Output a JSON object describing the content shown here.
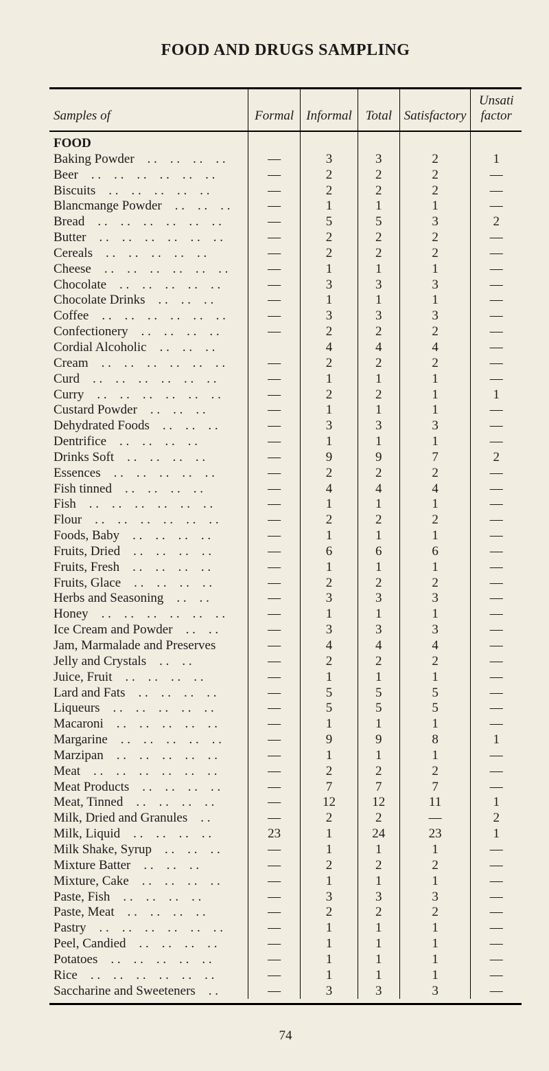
{
  "title": "FOOD AND DRUGS SAMPLING",
  "columns": {
    "samples": "Samples of",
    "formal": "Formal",
    "informal": "Informal",
    "total": "Total",
    "satisfactory": "Satisfactory",
    "unsat": "Unsati\nfactor"
  },
  "section_head": "FOOD",
  "dash": "—",
  "rows": [
    {
      "name": "Baking Powder",
      "f": "—",
      "i": "3",
      "t": "3",
      "s": "2",
      "u": "1"
    },
    {
      "name": "Beer",
      "f": "—",
      "i": "2",
      "t": "2",
      "s": "2",
      "u": "—"
    },
    {
      "name": "Biscuits",
      "f": "—",
      "i": "2",
      "t": "2",
      "s": "2",
      "u": "—"
    },
    {
      "name": "Blancmange Powder",
      "f": "—",
      "i": "1",
      "t": "1",
      "s": "1",
      "u": "—"
    },
    {
      "name": "Bread",
      "f": "—",
      "i": "5",
      "t": "5",
      "s": "3",
      "u": "2"
    },
    {
      "name": "Butter",
      "f": "—",
      "i": "2",
      "t": "2",
      "s": "2",
      "u": "—"
    },
    {
      "name": "Cereals",
      "f": "—",
      "i": "2",
      "t": "2",
      "s": "2",
      "u": "—"
    },
    {
      "name": "Cheese",
      "f": "—",
      "i": "1",
      "t": "1",
      "s": "1",
      "u": "—"
    },
    {
      "name": "Chocolate",
      "f": "—",
      "i": "3",
      "t": "3",
      "s": "3",
      "u": "—"
    },
    {
      "name": "Chocolate Drinks",
      "f": "—",
      "i": "1",
      "t": "1",
      "s": "1",
      "u": "—"
    },
    {
      "name": "Coffee",
      "f": "—",
      "i": "3",
      "t": "3",
      "s": "3",
      "u": "—"
    },
    {
      "name": "Confectionery",
      "f": "—",
      "i": "2",
      "t": "2",
      "s": "2",
      "u": "—"
    },
    {
      "name": "Cordial Alcoholic",
      "f": "",
      "i": "4",
      "t": "4",
      "s": "4",
      "u": "—"
    },
    {
      "name": "Cream",
      "f": "—",
      "i": "2",
      "t": "2",
      "s": "2",
      "u": "—"
    },
    {
      "name": "Curd",
      "f": "—",
      "i": "1",
      "t": "1",
      "s": "1",
      "u": "—"
    },
    {
      "name": "Curry",
      "f": "—",
      "i": "2",
      "t": "2",
      "s": "1",
      "u": "1"
    },
    {
      "name": "Custard Powder",
      "f": "—",
      "i": "1",
      "t": "1",
      "s": "1",
      "u": "—"
    },
    {
      "name": "Dehydrated Foods",
      "f": "—",
      "i": "3",
      "t": "3",
      "s": "3",
      "u": "—"
    },
    {
      "name": "Dentrifice",
      "f": "—",
      "i": "1",
      "t": "1",
      "s": "1",
      "u": "—"
    },
    {
      "name": "Drinks Soft",
      "f": "—",
      "i": "9",
      "t": "9",
      "s": "7",
      "u": "2"
    },
    {
      "name": "Essences",
      "f": "—",
      "i": "2",
      "t": "2",
      "s": "2",
      "u": "—"
    },
    {
      "name": "Fish tinned",
      "f": "—",
      "i": "4",
      "t": "4",
      "s": "4",
      "u": "—"
    },
    {
      "name": "Fish",
      "f": "—",
      "i": "1",
      "t": "1",
      "s": "1",
      "u": "—"
    },
    {
      "name": "Flour",
      "f": "—",
      "i": "2",
      "t": "2",
      "s": "2",
      "u": "—"
    },
    {
      "name": "Foods, Baby",
      "f": "—",
      "i": "1",
      "t": "1",
      "s": "1",
      "u": "—"
    },
    {
      "name": "Fruits, Dried",
      "f": "—",
      "i": "6",
      "t": "6",
      "s": "6",
      "u": "—"
    },
    {
      "name": "Fruits, Fresh",
      "f": "—",
      "i": "1",
      "t": "1",
      "s": "1",
      "u": "—"
    },
    {
      "name": "Fruits, Glace",
      "f": "—",
      "i": "2",
      "t": "2",
      "s": "2",
      "u": "—"
    },
    {
      "name": "Herbs and Seasoning",
      "f": "—",
      "i": "3",
      "t": "3",
      "s": "3",
      "u": "—"
    },
    {
      "name": "Honey",
      "f": "—",
      "i": "1",
      "t": "1",
      "s": "1",
      "u": "—"
    },
    {
      "name": "Ice Cream and Powder",
      "f": "—",
      "i": "3",
      "t": "3",
      "s": "3",
      "u": "—"
    },
    {
      "name": "Jam, Marmalade and Preserves",
      "f": "—",
      "i": "4",
      "t": "4",
      "s": "4",
      "u": "—"
    },
    {
      "name": "Jelly and Crystals",
      "f": "—",
      "i": "2",
      "t": "2",
      "s": "2",
      "u": "—"
    },
    {
      "name": "Juice, Fruit",
      "f": "—",
      "i": "1",
      "t": "1",
      "s": "1",
      "u": "—"
    },
    {
      "name": "Lard and Fats",
      "f": "—",
      "i": "5",
      "t": "5",
      "s": "5",
      "u": "—"
    },
    {
      "name": "Liqueurs",
      "f": "—",
      "i": "5",
      "t": "5",
      "s": "5",
      "u": "—"
    },
    {
      "name": "Macaroni",
      "f": "—",
      "i": "1",
      "t": "1",
      "s": "1",
      "u": "—"
    },
    {
      "name": "Margarine",
      "f": "—",
      "i": "9",
      "t": "9",
      "s": "8",
      "u": "1"
    },
    {
      "name": "Marzipan",
      "f": "—",
      "i": "1",
      "t": "1",
      "s": "1",
      "u": "—"
    },
    {
      "name": "Meat",
      "f": "—",
      "i": "2",
      "t": "2",
      "s": "2",
      "u": "—"
    },
    {
      "name": "Meat Products",
      "f": "—",
      "i": "7",
      "t": "7",
      "s": "7",
      "u": "—"
    },
    {
      "name": "Meat, Tinned",
      "f": "—",
      "i": "12",
      "t": "12",
      "s": "11",
      "u": "1"
    },
    {
      "name": "Milk, Dried and Granules",
      "f": "—",
      "i": "2",
      "t": "2",
      "s": "—",
      "u": "2"
    },
    {
      "name": "Milk, Liquid",
      "f": "23",
      "i": "1",
      "t": "24",
      "s": "23",
      "u": "1"
    },
    {
      "name": "Milk Shake, Syrup",
      "f": "—",
      "i": "1",
      "t": "1",
      "s": "1",
      "u": "—"
    },
    {
      "name": "Mixture Batter",
      "f": "—",
      "i": "2",
      "t": "2",
      "s": "2",
      "u": "—"
    },
    {
      "name": "Mixture, Cake",
      "f": "—",
      "i": "1",
      "t": "1",
      "s": "1",
      "u": "—"
    },
    {
      "name": "Paste, Fish",
      "f": "—",
      "i": "3",
      "t": "3",
      "s": "3",
      "u": "—"
    },
    {
      "name": "Paste, Meat",
      "f": "—",
      "i": "2",
      "t": "2",
      "s": "2",
      "u": "—"
    },
    {
      "name": "Pastry",
      "f": "—",
      "i": "1",
      "t": "1",
      "s": "1",
      "u": "—"
    },
    {
      "name": "Peel, Candied",
      "f": "—",
      "i": "1",
      "t": "1",
      "s": "1",
      "u": "—"
    },
    {
      "name": "Potatoes",
      "f": "—",
      "i": "1",
      "t": "1",
      "s": "1",
      "u": "—"
    },
    {
      "name": "Rice",
      "f": "—",
      "i": "1",
      "t": "1",
      "s": "1",
      "u": "—"
    },
    {
      "name": "Saccharine and Sweeteners",
      "f": "—",
      "i": "3",
      "t": "3",
      "s": "3",
      "u": "—"
    }
  ],
  "page_number": "74",
  "style": {
    "background": "#f2ede1",
    "text_color": "#1a1a1a",
    "font_family": "Times New Roman",
    "title_fontsize": 24,
    "body_fontsize": 19,
    "rule_heavy": "3px solid #000",
    "rule_light": "1px solid #000",
    "col_widths": {
      "name": 280,
      "num": 90,
      "last": 110
    }
  }
}
